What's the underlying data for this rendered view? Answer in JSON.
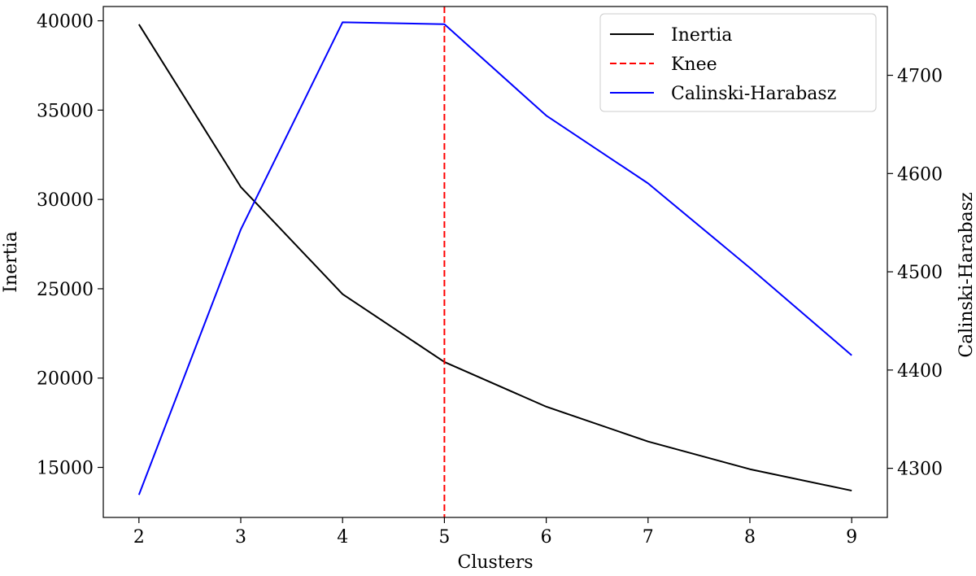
{
  "chart_data": {
    "type": "line",
    "xlabel": "Clusters",
    "ylabel_left": "Inertia",
    "ylabel_right": "Calinski-Harabasz",
    "x": [
      2,
      3,
      4,
      5,
      6,
      7,
      8,
      9
    ],
    "xticks": [
      "2",
      "3",
      "4",
      "5",
      "6",
      "7",
      "8",
      "9"
    ],
    "xlim": [
      1.65,
      9.35
    ],
    "ylim_left": [
      12200,
      40800
    ],
    "ylim_right": [
      4250,
      4770
    ],
    "yticks_left": [
      "15000",
      "20000",
      "25000",
      "30000",
      "35000",
      "40000"
    ],
    "yticks_right": [
      "4300",
      "4400",
      "4500",
      "4600",
      "4700"
    ],
    "series": [
      {
        "name": "Inertia",
        "axis": "left",
        "color": "#000000",
        "style": "solid",
        "values": [
          39800,
          30700,
          24700,
          20900,
          18400,
          16450,
          14900,
          13700
        ]
      },
      {
        "name": "Calinski-Harabasz",
        "axis": "right",
        "color": "#0000ff",
        "style": "solid",
        "values": [
          4273,
          4543,
          4754,
          4752,
          4659,
          4590,
          4504,
          4415
        ]
      }
    ],
    "vline": {
      "name": "Knee",
      "x": 5,
      "color": "#ff0000",
      "style": "dashed"
    },
    "legend": {
      "placement": "top-right",
      "entries": [
        {
          "label": "Inertia",
          "color": "#000000",
          "style": "solid"
        },
        {
          "label": "Knee",
          "color": "#ff0000",
          "style": "dashed"
        },
        {
          "label": "Calinski-Harabasz",
          "color": "#0000ff",
          "style": "solid"
        }
      ]
    },
    "grid": false
  }
}
